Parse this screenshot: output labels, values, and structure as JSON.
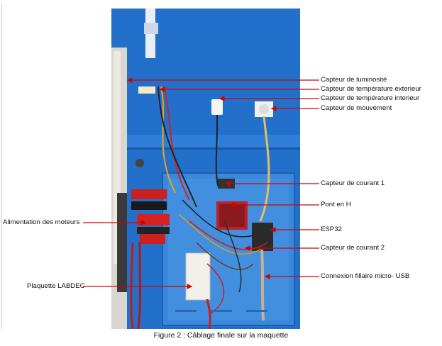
{
  "annotations": {
    "luminosite": "Capteur de luminosité",
    "temp_ext": "Capteur de température exterieur",
    "temp_int": "Capteur de température interieur",
    "mouvement": "Capteur de mouvement",
    "courant1": "Capteur de courant 1",
    "pont_h": "Pont en H",
    "esp32": "ESP32",
    "courant2": "Capteur de courant 2",
    "usb": "Connexion fillaire micro- USB",
    "moteurs": "Alimentation des moteurs",
    "plaquette": "Plaquette LABDEC"
  },
  "caption": "Figure 2 : Câblage finale sur la maquette",
  "colors": {
    "arrow": "#d40000",
    "panel_blue": "#1f6fc9",
    "box_blue": "#3b86d8"
  }
}
